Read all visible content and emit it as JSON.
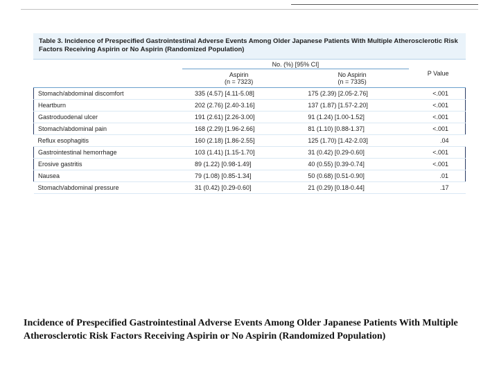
{
  "top_rule_color": "#5a5a5a",
  "table": {
    "title": "Table 3. Incidence of Prespecified Gastrointestinal Adverse Events Among Older Japanese Patients With Multiple Atherosclerotic Risk Factors Receiving Aspirin or No Aspirin (Randomized Population)",
    "super_header": "No. (%) [95% CI]",
    "col_aspirin": "Aspirin",
    "col_aspirin_n": "(n = 7323)",
    "col_noaspirin": "No Aspirin",
    "col_noaspirin_n": "(n = 7335)",
    "col_p": "P Value",
    "rows": [
      {
        "event": "Stomach/abdominal discomfort",
        "aspirin": "335 (4.57) [4.11-5.08]",
        "noaspirin": "175 (2.39) [2.05-2.76]",
        "p": "<.001",
        "hl": true
      },
      {
        "event": "Heartburn",
        "aspirin": "202 (2.76) [2.40-3.16]",
        "noaspirin": "137 (1.87) [1.57-2.20]",
        "p": "<.001",
        "hl": true
      },
      {
        "event": "Gastroduodenal ulcer",
        "aspirin": "191 (2.61) [2.26-3.00]",
        "noaspirin": "91 (1.24) [1.00-1.52]",
        "p": "<.001",
        "hl": true
      },
      {
        "event": "Stomach/abdominal pain",
        "aspirin": "168 (2.29) [1.96-2.66]",
        "noaspirin": "81 (1.10) [0.88-1.37]",
        "p": "<.001",
        "hl": true
      },
      {
        "event": "Reflux esophagitis",
        "aspirin": "160 (2.18) [1.86-2.55]",
        "noaspirin": "125 (1.70) [1.42-2.03]",
        "p": ".04",
        "hl": false
      },
      {
        "event": "Gastrointestinal hemorrhage",
        "aspirin": "103 (1.41) [1.15-1.70]",
        "noaspirin": "31 (0.42) [0.29-0.60]",
        "p": "<.001",
        "hl": true
      },
      {
        "event": "Erosive gastritis",
        "aspirin": "89 (1.22) [0.98-1.49]",
        "noaspirin": "40 (0.55) [0.39-0.74]",
        "p": "<.001",
        "hl": true
      },
      {
        "event": "Nausea",
        "aspirin": "79 (1.08) [0.85-1.34]",
        "noaspirin": "50 (0.68) [0.51-0.90]",
        "p": ".01",
        "hl": true
      },
      {
        "event": "Stomach/abdominal pressure",
        "aspirin": "31 (0.42) [0.29-0.60]",
        "noaspirin": "21 (0.29) [0.18-0.44]",
        "p": ".17",
        "hl": false
      }
    ],
    "colors": {
      "band_bg": "#eaf3fa",
      "header_rule": "#6aa0cc",
      "row_rule": "#d9e8f4",
      "highlight_border": "#2a3b66"
    }
  },
  "caption": "Incidence of Prespecified Gastrointestinal Adverse Events Among Older Japanese Patients With Multiple Atherosclerotic Risk Factors Receiving Aspirin or No Aspirin (Randomized Population)"
}
